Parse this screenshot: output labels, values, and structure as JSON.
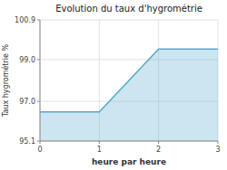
{
  "chart_data": {
    "type": "area",
    "title": "Evolution du taux d'hygrométrie",
    "x_label": "heure par heure",
    "y_label": "Taux hygrométrie %",
    "x": [
      0,
      1,
      2,
      3
    ],
    "values": [
      96.5,
      96.5,
      99.5,
      99.5
    ],
    "color": "#55aacc",
    "xlim": [
      0,
      3
    ],
    "ylim": [
      95.1,
      100.9
    ],
    "xticks": [
      0,
      1,
      2,
      3
    ],
    "yticks": [
      95.1,
      {
        "value": 97.0,
        "label": "97.0"
      },
      {
        "value": 99.0,
        "label": "99.0"
      },
      100.9
    ],
    "grid": true
  }
}
